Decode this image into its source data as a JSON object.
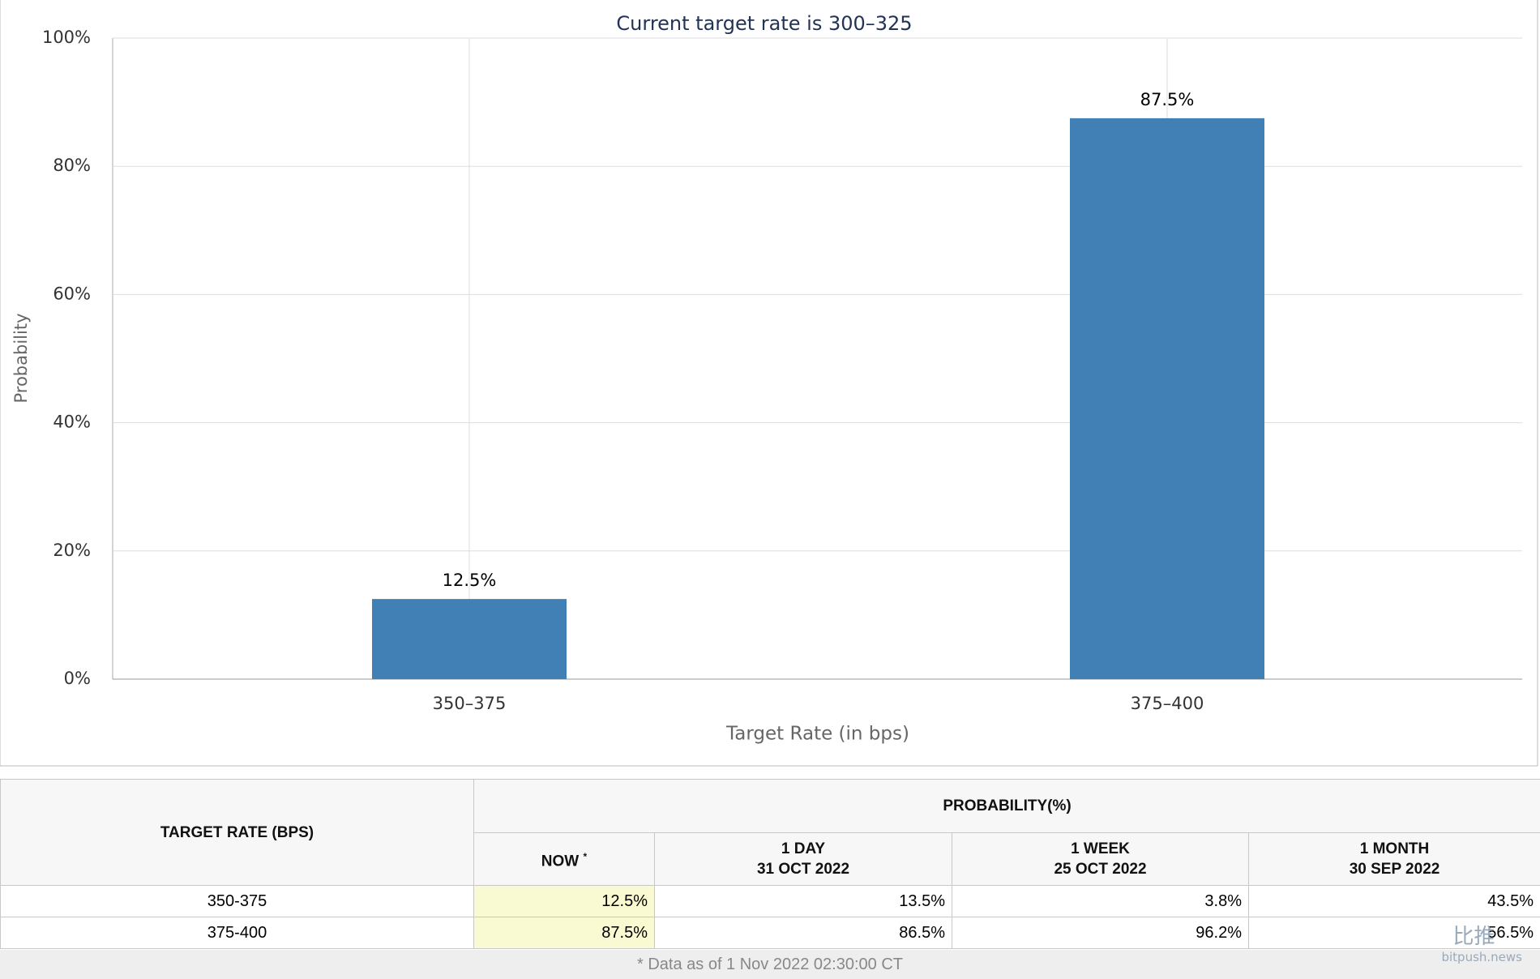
{
  "chart_data": {
    "type": "bar",
    "title": "Current target rate is 300–325",
    "x_label": "Target Rate (in bps)",
    "y_label": "Probability",
    "categories": [
      "350–375",
      "375–400"
    ],
    "values": [
      12.5,
      87.5
    ],
    "value_labels": [
      "12.5%",
      "87.5%"
    ],
    "color": "#4080b4",
    "ylim": [
      0,
      100
    ],
    "yticks": [
      {
        "value": 0,
        "label": "0%"
      },
      {
        "value": 20,
        "label": "20%"
      },
      {
        "value": 40,
        "label": "40%"
      },
      {
        "value": 60,
        "label": "60%"
      },
      {
        "value": 80,
        "label": "80%"
      },
      {
        "value": 100,
        "label": "100%"
      }
    ],
    "grid": true
  },
  "table": {
    "header": {
      "rate": "TARGET RATE (BPS)",
      "probability": "PROBABILITY(%)",
      "columns": [
        [
          "NOW",
          "*"
        ],
        [
          "1 DAY",
          "31 OCT 2022"
        ],
        [
          "1 WEEK",
          "25 OCT 2022"
        ],
        [
          "1 MONTH",
          "30 SEP 2022"
        ]
      ]
    },
    "rows": [
      [
        "350-375",
        "12.5%",
        "13.5%",
        "3.8%",
        "43.5%"
      ],
      [
        "375-400",
        "87.5%",
        "86.5%",
        "96.2%",
        "56.5%"
      ]
    ],
    "footnote": "* Data as of 1 Nov 2022 02:30:00 CT"
  },
  "watermark": [
    "比推",
    "bitpush.news"
  ]
}
